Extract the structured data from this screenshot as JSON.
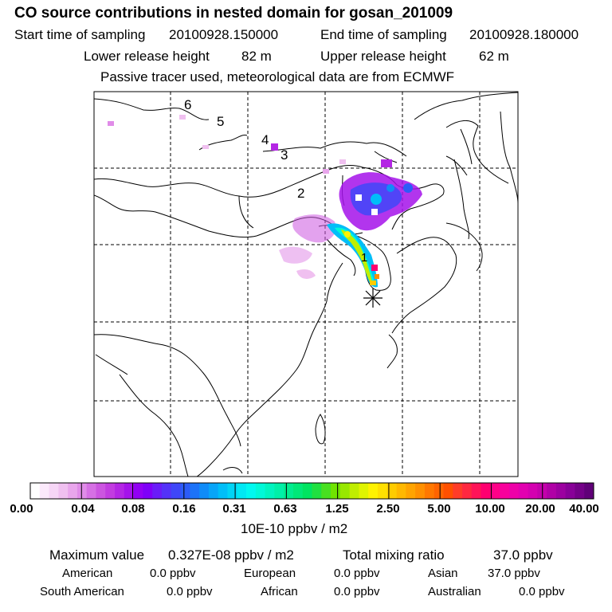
{
  "title": "CO  source contributions in nested domain for gosan_201009",
  "sampling": {
    "start_label": "Start time of sampling",
    "start_value": "20100928.150000",
    "end_label": "End time of sampling",
    "end_value": "20100928.180000"
  },
  "release": {
    "lower_label": "Lower release height",
    "lower_value": "82 m",
    "upper_label": "Upper release height",
    "upper_value": "62 m"
  },
  "note": "Passive tracer used, meteorological data are from ECMWF",
  "trajectory_labels": [
    "6",
    "5",
    "4",
    "3",
    "2",
    "1"
  ],
  "colorbar": {
    "ticks": [
      "0.00",
      "0.04",
      "0.08",
      "0.16",
      "0.31",
      "0.63",
      "1.25",
      "2.50",
      "5.00",
      "10.00",
      "20.00",
      "40.00"
    ],
    "unit": "10E-10 ppbv / m2",
    "colors": [
      "#ffffff",
      "#fbe9fb",
      "#f6d6f6",
      "#f0c0f0",
      "#e9a6ec",
      "#e08ce8",
      "#d670e4",
      "#cc55e0",
      "#c23ce0",
      "#b426e4",
      "#a512ea",
      "#9200f4",
      "#7f00f8",
      "#6a1cf8",
      "#5432f8",
      "#3f46f8",
      "#2c5cf8",
      "#1c73f8",
      "#108cf8",
      "#08a5f8",
      "#00bef8",
      "#00d4f6",
      "#00e8f4",
      "#00f8f0",
      "#00f8d8",
      "#00f4c0",
      "#00f0a8",
      "#00ec90",
      "#00e878",
      "#00e460",
      "#20e040",
      "#48e020",
      "#70e400",
      "#98e800",
      "#c0ee00",
      "#e0f400",
      "#fff200",
      "#ffe000",
      "#ffcc00",
      "#ffb800",
      "#ffa400",
      "#ff9000",
      "#ff7800",
      "#ff6400",
      "#ff5000",
      "#ff3c28",
      "#ff2840",
      "#ff1458",
      "#ff0070",
      "#ff0088",
      "#f8009c",
      "#ee00a8",
      "#e200b0",
      "#d400b0",
      "#c400ac",
      "#b000a6",
      "#9c00a0",
      "#880098",
      "#740088",
      "#600078"
    ]
  },
  "stats": {
    "max_label": "Maximum value",
    "max_value": "0.327E-08 ppbv / m2",
    "total_label": "Total mixing ratio",
    "total_value": "37.0 ppbv"
  },
  "regions": [
    {
      "name": "American",
      "value": "0.0 ppbv"
    },
    {
      "name": "European",
      "value": "0.0 ppbv"
    },
    {
      "name": "Asian",
      "value": "37.0 ppbv"
    },
    {
      "name": "South American",
      "value": "0.0 ppbv"
    },
    {
      "name": "African",
      "value": "0.0 ppbv"
    },
    {
      "name": "Australian",
      "value": "0.0 ppbv"
    }
  ]
}
